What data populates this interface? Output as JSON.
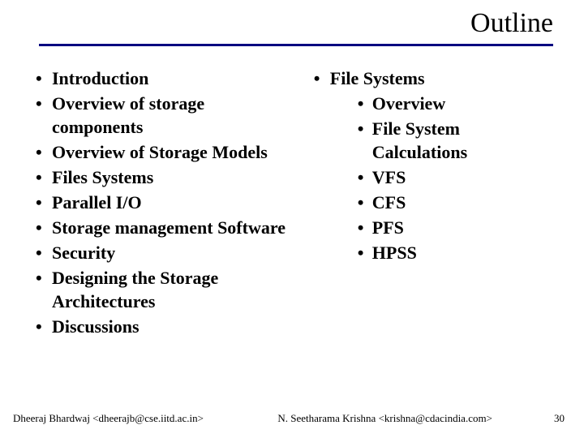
{
  "title": "Outline",
  "hr_color": "#000080",
  "left_items": [
    "Introduction",
    "Overview of storage components",
    "Overview of Storage Models",
    "Files Systems",
    "Parallel I/O",
    "Storage management Software",
    "Security",
    "Designing the Storage Architectures",
    "Discussions"
  ],
  "right_parent": "File Systems",
  "right_sub_items": [
    "Overview",
    "File System Calculations",
    "VFS",
    "CFS",
    "PFS",
    "HPSS"
  ],
  "footer": {
    "left": "Dheeraj Bhardwaj <dheerajb@cse.iitd.ac.in>",
    "mid": "N. Seetharama Krishna <krishna@cdacindia.com>",
    "page": "30"
  },
  "text_color": "#000000",
  "background": "#ffffff"
}
